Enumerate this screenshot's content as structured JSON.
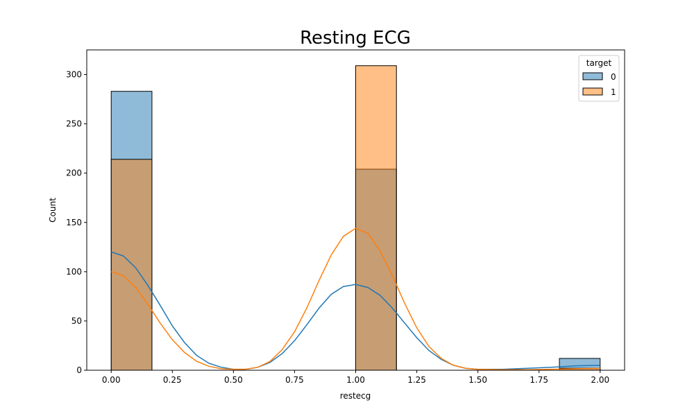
{
  "chart_data": {
    "type": "bar",
    "title": "Resting ECG",
    "xlabel": "restecg",
    "ylabel": "Count",
    "xlim": [
      -0.1,
      2.1
    ],
    "ylim": [
      0,
      325
    ],
    "xticks": [
      0.0,
      0.25,
      0.5,
      0.75,
      1.0,
      1.25,
      1.5,
      1.75,
      2.0
    ],
    "xtick_labels": [
      "0.00",
      "0.25",
      "0.50",
      "0.75",
      "1.00",
      "1.25",
      "1.50",
      "1.75",
      "2.00"
    ],
    "yticks": [
      0,
      50,
      100,
      150,
      200,
      250,
      300
    ],
    "ytick_labels": [
      "0",
      "50",
      "100",
      "150",
      "200",
      "250",
      "300"
    ],
    "bin_width": 0.1667,
    "bins": [
      0.0,
      1.0,
      1.8333
    ],
    "legend": {
      "title": "target",
      "placement": "top-right"
    },
    "series": [
      {
        "name": "0",
        "color": "#1f77b4",
        "values": [
          283,
          204,
          12
        ],
        "kde": [
          [
            0.0,
            120
          ],
          [
            0.05,
            116
          ],
          [
            0.1,
            104
          ],
          [
            0.15,
            86
          ],
          [
            0.2,
            66
          ],
          [
            0.25,
            45
          ],
          [
            0.3,
            28
          ],
          [
            0.35,
            15
          ],
          [
            0.4,
            7
          ],
          [
            0.45,
            3
          ],
          [
            0.5,
            1
          ],
          [
            0.55,
            1
          ],
          [
            0.6,
            3
          ],
          [
            0.65,
            8
          ],
          [
            0.7,
            17
          ],
          [
            0.75,
            30
          ],
          [
            0.8,
            46
          ],
          [
            0.85,
            63
          ],
          [
            0.9,
            77
          ],
          [
            0.95,
            85
          ],
          [
            1.0,
            87
          ],
          [
            1.05,
            84
          ],
          [
            1.1,
            76
          ],
          [
            1.15,
            63
          ],
          [
            1.2,
            48
          ],
          [
            1.25,
            33
          ],
          [
            1.3,
            20
          ],
          [
            1.35,
            11
          ],
          [
            1.4,
            5
          ],
          [
            1.45,
            2
          ],
          [
            1.5,
            1
          ],
          [
            1.6,
            1
          ],
          [
            1.7,
            2
          ],
          [
            1.8,
            3
          ],
          [
            1.9,
            4.5
          ],
          [
            2.0,
            5
          ]
        ]
      },
      {
        "name": "1",
        "color": "#ff7f0e",
        "values": [
          214,
          309,
          2
        ],
        "kde": [
          [
            0.0,
            100
          ],
          [
            0.05,
            96
          ],
          [
            0.1,
            84
          ],
          [
            0.15,
            67
          ],
          [
            0.2,
            48
          ],
          [
            0.25,
            31
          ],
          [
            0.3,
            18
          ],
          [
            0.35,
            9
          ],
          [
            0.4,
            4
          ],
          [
            0.45,
            1.5
          ],
          [
            0.5,
            1
          ],
          [
            0.55,
            1
          ],
          [
            0.6,
            3
          ],
          [
            0.65,
            9
          ],
          [
            0.7,
            21
          ],
          [
            0.75,
            39
          ],
          [
            0.8,
            63
          ],
          [
            0.85,
            91
          ],
          [
            0.9,
            117
          ],
          [
            0.95,
            136
          ],
          [
            1.0,
            144
          ],
          [
            1.05,
            139
          ],
          [
            1.1,
            121
          ],
          [
            1.15,
            96
          ],
          [
            1.2,
            68
          ],
          [
            1.25,
            43
          ],
          [
            1.3,
            24
          ],
          [
            1.35,
            12
          ],
          [
            1.4,
            5
          ],
          [
            1.45,
            2
          ],
          [
            1.5,
            1
          ],
          [
            1.6,
            0.5
          ],
          [
            1.7,
            0.5
          ],
          [
            1.8,
            1
          ],
          [
            1.9,
            1.5
          ],
          [
            2.0,
            2
          ]
        ]
      }
    ]
  }
}
